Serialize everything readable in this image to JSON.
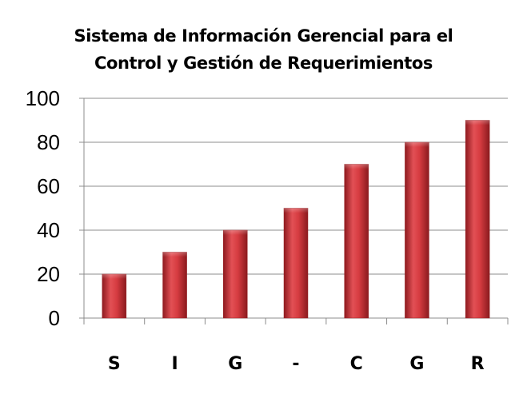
{
  "chart_data": {
    "type": "bar",
    "title_lines": [
      "Sistema de Información Gerencial para el",
      "Control y Gestión de Requerimientos"
    ],
    "categories": [
      "S",
      "I",
      "G",
      "-",
      "C",
      "G",
      "R"
    ],
    "values": [
      20,
      30,
      40,
      50,
      70,
      80,
      90
    ],
    "ylim": [
      0,
      100
    ],
    "yticks": [
      "0",
      "20",
      "40",
      "60",
      "80",
      "100"
    ],
    "grid": true,
    "legend": false,
    "bar_color": "#c0282e",
    "bar_highlight": "#e8585c"
  }
}
